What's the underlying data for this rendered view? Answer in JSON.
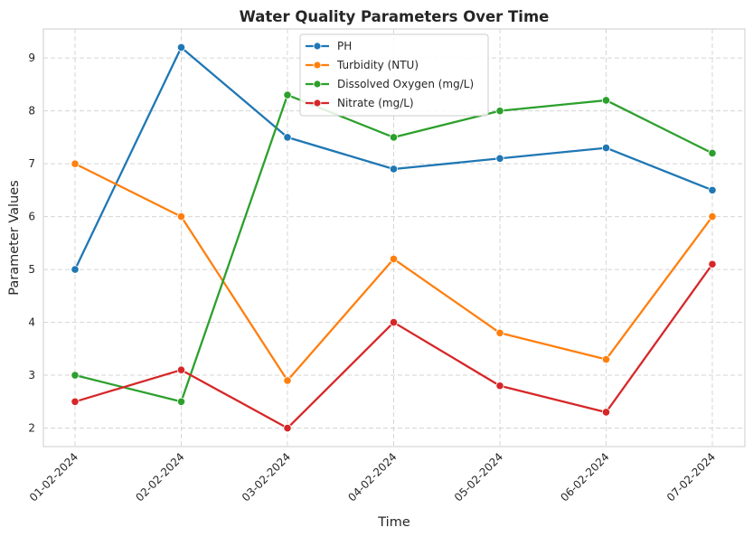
{
  "chart_data": {
    "type": "line",
    "title": "Water Quality Parameters Over Time",
    "xlabel": "Time",
    "ylabel": "Parameter Values",
    "categories": [
      "01-02-2024",
      "02-02-2024",
      "03-02-2024",
      "04-02-2024",
      "05-02-2024",
      "06-02-2024",
      "07-02-2024"
    ],
    "ylim": [
      1.65,
      9.55
    ],
    "yticks": [
      2,
      3,
      4,
      5,
      6,
      7,
      8,
      9
    ],
    "grid": true,
    "legend_position": "top-center",
    "series": [
      {
        "name": "PH",
        "color": "#1f77b4",
        "values": [
          5.0,
          9.2,
          7.5,
          6.9,
          7.1,
          7.3,
          6.5
        ]
      },
      {
        "name": "Turbidity (NTU)",
        "color": "#ff7f0e",
        "values": [
          7.0,
          6.0,
          2.9,
          5.2,
          3.8,
          3.3,
          6.0
        ]
      },
      {
        "name": "Dissolved Oxygen (mg/L)",
        "color": "#2ca02c",
        "values": [
          3.0,
          2.5,
          8.3,
          7.5,
          8.0,
          8.2,
          7.2
        ]
      },
      {
        "name": "Nitrate (mg/L)",
        "color": "#d62728",
        "values": [
          2.5,
          3.1,
          2.0,
          4.0,
          2.8,
          2.3,
          5.1
        ]
      }
    ]
  }
}
